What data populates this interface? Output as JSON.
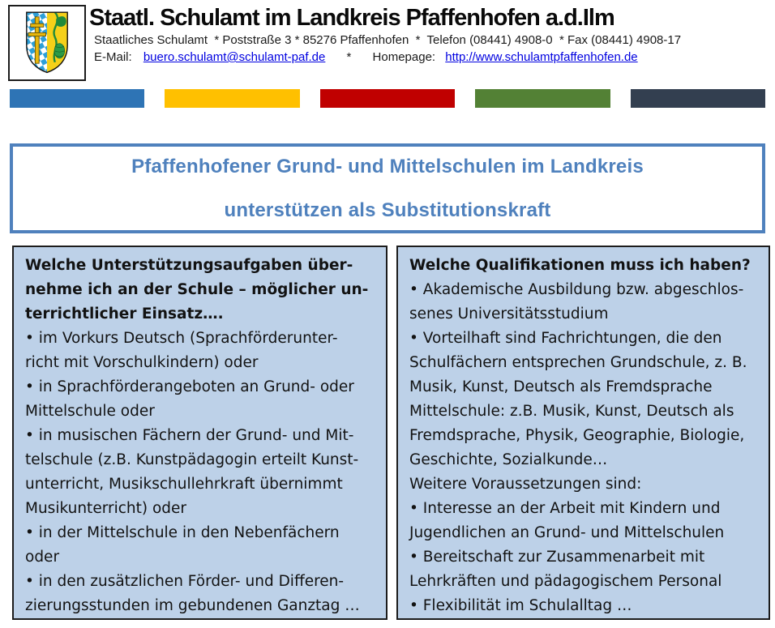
{
  "header": {
    "title": "Staatl. Schulamt im Landkreis Pfaffenhofen a.d.Ilm",
    "address_line": "Staatliches Schulamt  * Poststraße 3 * 85276 Pfaffenhofen  *  Telefon (08441) 4908-0  * Fax (08441) 4908-17",
    "email_label": "E-Mail:",
    "email_link": "buero.schulamt@schulamt-paf.de",
    "separator": "*",
    "homepage_label": "Homepage:",
    "homepage_link": "http://www.schulamtpfaffenhofen.de"
  },
  "logo": {
    "name": "Wappen Landkreis Pfaffenhofen",
    "shield_blue": "#2d9fd8",
    "shield_gold": "#f5d019",
    "shield_green": "#1f8a3b",
    "cross_gold": "#e7b70e"
  },
  "color_bars": [
    {
      "name": "blue",
      "color": "#2e74b5"
    },
    {
      "name": "gold",
      "color": "#ffc000"
    },
    {
      "name": "red",
      "color": "#c00000"
    },
    {
      "name": "green",
      "color": "#538135"
    },
    {
      "name": "dark-slate",
      "color": "#333f50"
    }
  ],
  "banner": {
    "line1": "Pfaffenhofener Grund- und Mittelschulen im Landkreis",
    "line2": "unterstützen als Substitutionskraft",
    "accent_color": "#4f81bd"
  },
  "left_box": {
    "lines": [
      {
        "bold": true,
        "text": "Welche Unterstützungsaufgaben über-"
      },
      {
        "bold": true,
        "text": "nehme ich an der Schule – möglicher un-"
      },
      {
        "bold": true,
        "text": "terrichtlicher Einsatz…."
      },
      {
        "bold": false,
        "text": "• im Vorkurs Deutsch (Sprachförderunter-"
      },
      {
        "bold": false,
        "text": "richt mit Vorschulkindern) oder"
      },
      {
        "bold": false,
        "text": "• in Sprachförderangeboten an Grund- oder"
      },
      {
        "bold": false,
        "text": "Mittelschule oder"
      },
      {
        "bold": false,
        "text": "• in musischen Fächern der Grund- und Mit-"
      },
      {
        "bold": false,
        "text": "telschule (z.B. Kunstpädagogin erteilt Kunst-"
      },
      {
        "bold": false,
        "text": "unterricht, Musikschullehrkraft übernimmt"
      },
      {
        "bold": false,
        "text": "Musikunterricht) oder"
      },
      {
        "bold": false,
        "text": "• in der Mittelschule in den Nebenfächern"
      },
      {
        "bold": false,
        "text": "oder"
      },
      {
        "bold": false,
        "text": "• in den zusätzlichen Förder- und Differen-"
      },
      {
        "bold": false,
        "text": "zierungsstunden im gebundenen Ganztag …"
      }
    ]
  },
  "right_box": {
    "lines": [
      {
        "bold": true,
        "text": "Welche Qualifikationen muss ich haben?"
      },
      {
        "bold": false,
        "text": "• Akademische Ausbildung bzw. abgeschlos-"
      },
      {
        "bold": false,
        "text": "senes Universitätsstudium"
      },
      {
        "bold": false,
        "text": "• Vorteilhaft sind Fachrichtungen, die den"
      },
      {
        "bold": false,
        "text": "Schulfächern entsprechen Grundschule, z. B."
      },
      {
        "bold": false,
        "text": "Musik, Kunst, Deutsch als Fremdsprache"
      },
      {
        "bold": false,
        "text": "Mittelschule: z.B. Musik, Kunst, Deutsch als"
      },
      {
        "bold": false,
        "text": "Fremdsprache, Physik, Geographie, Biologie,"
      },
      {
        "bold": false,
        "text": "Geschichte, Sozialkunde…"
      },
      {
        "bold": false,
        "text": "Weitere Voraussetzungen sind:"
      },
      {
        "bold": false,
        "text": "• Interesse an der Arbeit mit Kindern und"
      },
      {
        "bold": false,
        "text": "Jugendlichen an Grund- und Mittelschulen"
      },
      {
        "bold": false,
        "text": "• Bereitschaft zur Zusammenarbeit mit"
      },
      {
        "bold": false,
        "text": "Lehrkräften und pädagogischem Personal"
      },
      {
        "bold": false,
        "text": "• Flexibilität im Schulalltag …"
      }
    ]
  }
}
